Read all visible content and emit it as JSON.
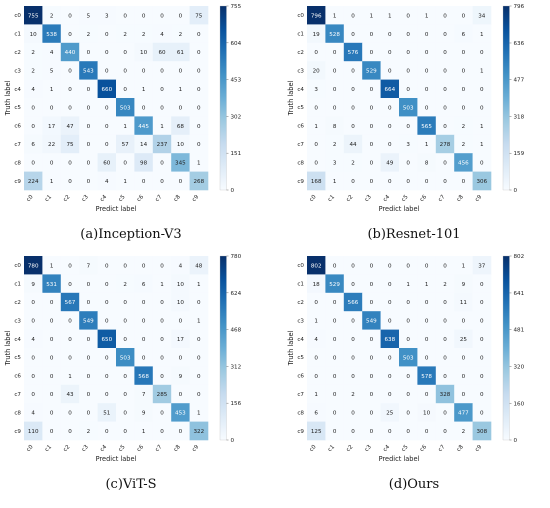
{
  "chart_data": [
    {
      "type": "heatmap",
      "caption": "(a)Inception-V3",
      "xlabel": "Predict label",
      "ylabel": "Truth label",
      "x_categories": [
        "c0",
        "c1",
        "c2",
        "c3",
        "c4",
        "c5",
        "c6",
        "c7",
        "c8",
        "c9"
      ],
      "y_categories": [
        "c0",
        "c1",
        "c2",
        "c3",
        "c4",
        "c5",
        "c6",
        "c7",
        "c8",
        "c9"
      ],
      "colorbar": {
        "min": 0,
        "max": 755,
        "ticks": [
          0,
          151,
          302,
          453,
          604,
          755
        ]
      },
      "matrix": [
        [
          755,
          2,
          0,
          5,
          3,
          0,
          0,
          0,
          0,
          75
        ],
        [
          10,
          538,
          0,
          2,
          0,
          2,
          2,
          4,
          2,
          0
        ],
        [
          2,
          4,
          440,
          0,
          0,
          0,
          10,
          60,
          61,
          0
        ],
        [
          2,
          5,
          0,
          543,
          0,
          0,
          0,
          0,
          0,
          0
        ],
        [
          4,
          1,
          0,
          0,
          660,
          0,
          1,
          0,
          1,
          0
        ],
        [
          0,
          0,
          0,
          0,
          0,
          503,
          0,
          0,
          0,
          0
        ],
        [
          0,
          17,
          47,
          0,
          0,
          1,
          445,
          1,
          68,
          0
        ],
        [
          6,
          22,
          75,
          0,
          0,
          57,
          14,
          237,
          10,
          0
        ],
        [
          0,
          0,
          0,
          0,
          60,
          0,
          98,
          0,
          345,
          1
        ],
        [
          224,
          1,
          0,
          0,
          4,
          1,
          0,
          0,
          0,
          268
        ]
      ]
    },
    {
      "type": "heatmap",
      "caption": "(b)Resnet-101",
      "xlabel": "Predict label",
      "ylabel": "Truth label",
      "x_categories": [
        "c0",
        "c1",
        "c2",
        "c3",
        "c4",
        "c5",
        "c6",
        "c7",
        "c8",
        "c9"
      ],
      "y_categories": [
        "c0",
        "c1",
        "c2",
        "c3",
        "c4",
        "c5",
        "c6",
        "c7",
        "c8",
        "c9"
      ],
      "colorbar": {
        "min": 0,
        "max": 796,
        "ticks": [
          0,
          159,
          318,
          477,
          636,
          796
        ]
      },
      "matrix": [
        [
          796,
          1,
          0,
          1,
          1,
          0,
          1,
          0,
          0,
          34
        ],
        [
          19,
          528,
          0,
          0,
          0,
          0,
          0,
          0,
          6,
          1
        ],
        [
          0,
          0,
          576,
          0,
          0,
          0,
          0,
          0,
          0,
          0
        ],
        [
          20,
          0,
          0,
          529,
          0,
          0,
          0,
          0,
          0,
          1
        ],
        [
          3,
          0,
          0,
          0,
          664,
          0,
          0,
          0,
          0,
          0
        ],
        [
          0,
          0,
          0,
          0,
          0,
          503,
          0,
          0,
          0,
          0
        ],
        [
          1,
          8,
          0,
          0,
          0,
          0,
          565,
          0,
          2,
          1
        ],
        [
          0,
          2,
          44,
          0,
          0,
          3,
          1,
          278,
          2,
          1
        ],
        [
          0,
          3,
          2,
          0,
          49,
          0,
          8,
          0,
          456,
          0
        ],
        [
          168,
          1,
          0,
          0,
          0,
          0,
          0,
          0,
          0,
          306
        ]
      ]
    },
    {
      "type": "heatmap",
      "caption": "(c)ViT-S",
      "xlabel": "Predict label",
      "ylabel": "Truth label",
      "x_categories": [
        "c0",
        "c1",
        "c2",
        "c3",
        "c4",
        "c5",
        "c6",
        "c7",
        "c8",
        "c9"
      ],
      "y_categories": [
        "c0",
        "c1",
        "c2",
        "c3",
        "c4",
        "c5",
        "c6",
        "c7",
        "c8",
        "c9"
      ],
      "colorbar": {
        "min": 0,
        "max": 780,
        "ticks": [
          0,
          156,
          312,
          468,
          624,
          780
        ]
      },
      "matrix": [
        [
          780,
          1,
          0,
          7,
          0,
          0,
          0,
          0,
          4,
          48
        ],
        [
          9,
          531,
          0,
          0,
          0,
          2,
          6,
          1,
          10,
          1
        ],
        [
          0,
          0,
          567,
          0,
          0,
          0,
          0,
          0,
          10,
          0
        ],
        [
          0,
          0,
          0,
          549,
          0,
          0,
          0,
          0,
          0,
          1
        ],
        [
          4,
          0,
          0,
          0,
          650,
          0,
          0,
          0,
          17,
          0
        ],
        [
          0,
          0,
          0,
          0,
          0,
          503,
          0,
          0,
          0,
          0
        ],
        [
          0,
          0,
          1,
          0,
          0,
          0,
          568,
          0,
          9,
          0
        ],
        [
          0,
          0,
          43,
          0,
          0,
          0,
          7,
          285,
          0,
          0
        ],
        [
          4,
          0,
          0,
          0,
          51,
          0,
          9,
          0,
          453,
          1
        ],
        [
          110,
          0,
          0,
          2,
          0,
          0,
          1,
          0,
          0,
          322
        ]
      ]
    },
    {
      "type": "heatmap",
      "caption": "(d)Ours",
      "xlabel": "Predict label",
      "ylabel": "Truth label",
      "x_categories": [
        "c0",
        "c1",
        "c2",
        "c3",
        "c4",
        "c5",
        "c6",
        "c7",
        "c8",
        "c9"
      ],
      "y_categories": [
        "c0",
        "c1",
        "c2",
        "c3",
        "c4",
        "c5",
        "c6",
        "c7",
        "c8",
        "c9"
      ],
      "colorbar": {
        "min": 0,
        "max": 802,
        "ticks": [
          0,
          160,
          320,
          481,
          641,
          802
        ]
      },
      "matrix": [
        [
          802,
          0,
          0,
          0,
          0,
          0,
          0,
          0,
          1,
          37
        ],
        [
          18,
          529,
          0,
          0,
          0,
          1,
          1,
          2,
          9,
          0
        ],
        [
          0,
          0,
          566,
          0,
          0,
          0,
          0,
          0,
          11,
          0
        ],
        [
          1,
          0,
          0,
          549,
          0,
          0,
          0,
          0,
          0,
          0
        ],
        [
          4,
          0,
          0,
          0,
          638,
          0,
          0,
          0,
          25,
          0
        ],
        [
          0,
          0,
          0,
          0,
          0,
          503,
          0,
          0,
          0,
          0
        ],
        [
          0,
          0,
          0,
          0,
          0,
          0,
          578,
          0,
          0,
          0
        ],
        [
          1,
          0,
          2,
          0,
          0,
          0,
          0,
          328,
          0,
          0
        ],
        [
          6,
          0,
          0,
          0,
          25,
          0,
          10,
          0,
          477,
          0
        ],
        [
          125,
          0,
          0,
          0,
          0,
          0,
          0,
          0,
          2,
          308
        ]
      ]
    }
  ]
}
